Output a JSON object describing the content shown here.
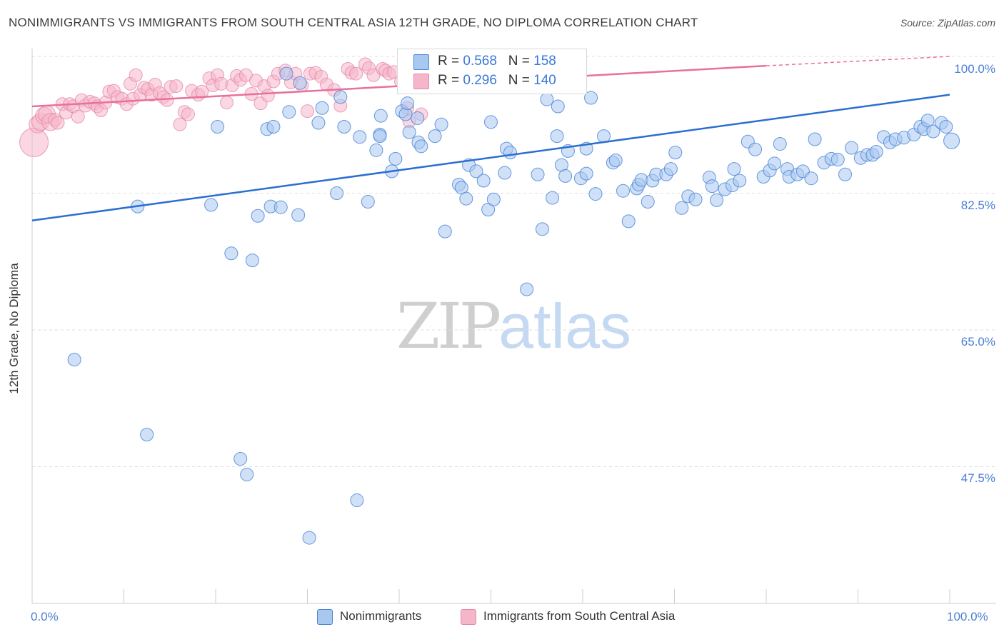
{
  "title": "NONIMMIGRANTS VS IMMIGRANTS FROM SOUTH CENTRAL ASIA 12TH GRADE, NO DIPLOMA CORRELATION CHART",
  "source": "Source: ZipAtlas.com",
  "legend_top": [
    {
      "r_label": "R = ",
      "r_value": "0.568",
      "n_label": "N = ",
      "n_value": "158"
    },
    {
      "r_label": "R = ",
      "r_value": "0.296",
      "n_label": "N = ",
      "n_value": "140"
    }
  ],
  "legend_bottom": [
    "Nonimmigrants",
    "Immigrants from South Central Asia"
  ],
  "watermark": {
    "zip": "ZIP",
    "atlas": "atlas"
  },
  "colors": {
    "blue_fill": "#a9c8f0",
    "blue_stroke": "#4b86d8",
    "blue_line": "#2a6fd0",
    "pink_fill": "#f5b6ca",
    "pink_stroke": "#e58aa8",
    "pink_line": "#e8709a",
    "tick_text": "#4a7fd4"
  },
  "chart_data": {
    "type": "scatter",
    "title": "NONIMMIGRANTS VS IMMIGRANTS FROM SOUTH CENTRAL ASIA 12TH GRADE, NO DIPLOMA CORRELATION CHART",
    "xlabel": "",
    "ylabel": "12th Grade, No Diploma",
    "xlim": [
      0,
      100
    ],
    "ylim": [
      30,
      100
    ],
    "x_tick_labels": [
      "0.0%",
      "100.0%"
    ],
    "y_ticks": [
      100,
      82.5,
      65,
      47.5
    ],
    "y_tick_labels": [
      "100.0%",
      "82.5%",
      "65.0%",
      "47.5%"
    ],
    "grid": "horizontal dashed",
    "legend_position": "top-center",
    "series": [
      {
        "name": "Nonimmigrants",
        "trendline": {
          "x": [
            0,
            100
          ],
          "y": [
            79.0,
            95.1
          ]
        },
        "points": [
          [
            4.6,
            61.2
          ],
          [
            11.5,
            80.8
          ],
          [
            12.5,
            51.6
          ],
          [
            19.5,
            81.0
          ],
          [
            20.2,
            91.0
          ],
          [
            21.7,
            74.8
          ],
          [
            22.7,
            48.5
          ],
          [
            23.4,
            46.5
          ],
          [
            24.0,
            73.9
          ],
          [
            24.6,
            79.6
          ],
          [
            25.6,
            90.7
          ],
          [
            26.0,
            80.8
          ],
          [
            26.3,
            91.0
          ],
          [
            27.1,
            80.7
          ],
          [
            27.7,
            97.8
          ],
          [
            28.0,
            92.9
          ],
          [
            29.0,
            79.7
          ],
          [
            29.2,
            96.6
          ],
          [
            30.2,
            38.4
          ],
          [
            31.2,
            91.5
          ],
          [
            31.6,
            93.4
          ],
          [
            33.2,
            82.5
          ],
          [
            33.6,
            94.8
          ],
          [
            34.0,
            91.0
          ],
          [
            35.4,
            43.2
          ],
          [
            35.7,
            89.7
          ],
          [
            36.6,
            81.4
          ],
          [
            37.5,
            88.0
          ],
          [
            37.9,
            90.0
          ],
          [
            37.9,
            89.8
          ],
          [
            38.0,
            92.4
          ],
          [
            39.2,
            85.3
          ],
          [
            39.6,
            86.9
          ],
          [
            40.3,
            93.0
          ],
          [
            40.7,
            92.6
          ],
          [
            40.9,
            94.0
          ],
          [
            41.1,
            90.3
          ],
          [
            42.0,
            92.1
          ],
          [
            42.1,
            89.0
          ],
          [
            42.4,
            88.5
          ],
          [
            43.7,
            97.7
          ],
          [
            43.9,
            89.8
          ],
          [
            44.6,
            91.3
          ],
          [
            45.0,
            77.6
          ],
          [
            46.5,
            83.6
          ],
          [
            46.8,
            83.2
          ],
          [
            47.3,
            81.8
          ],
          [
            47.6,
            86.1
          ],
          [
            48.4,
            85.3
          ],
          [
            49.2,
            84.1
          ],
          [
            49.7,
            80.4
          ],
          [
            50.0,
            91.6
          ],
          [
            50.3,
            81.7
          ],
          [
            51.5,
            85.1
          ],
          [
            51.7,
            88.2
          ],
          [
            52.1,
            87.7
          ],
          [
            53.9,
            70.2
          ],
          [
            55.1,
            84.9
          ],
          [
            55.6,
            77.9
          ],
          [
            56.1,
            94.5
          ],
          [
            56.7,
            81.9
          ],
          [
            57.2,
            89.8
          ],
          [
            57.3,
            93.6
          ],
          [
            57.7,
            86.1
          ],
          [
            58.1,
            84.7
          ],
          [
            58.4,
            87.9
          ],
          [
            59.8,
            84.4
          ],
          [
            60.4,
            85.0
          ],
          [
            60.4,
            88.2
          ],
          [
            60.9,
            94.7
          ],
          [
            61.4,
            82.4
          ],
          [
            62.3,
            89.8
          ],
          [
            63.3,
            86.4
          ],
          [
            63.6,
            86.7
          ],
          [
            64.4,
            82.8
          ],
          [
            65.0,
            78.9
          ],
          [
            65.9,
            83.1
          ],
          [
            66.1,
            83.6
          ],
          [
            66.4,
            84.2
          ],
          [
            67.1,
            81.4
          ],
          [
            67.6,
            84.1
          ],
          [
            68.0,
            84.9
          ],
          [
            69.1,
            84.9
          ],
          [
            69.6,
            85.6
          ],
          [
            70.1,
            87.7
          ],
          [
            70.8,
            80.6
          ],
          [
            71.5,
            82.1
          ],
          [
            72.3,
            81.7
          ],
          [
            73.8,
            84.5
          ],
          [
            74.1,
            83.4
          ],
          [
            74.6,
            81.6
          ],
          [
            75.5,
            83.0
          ],
          [
            76.3,
            83.5
          ],
          [
            76.5,
            85.6
          ],
          [
            77.1,
            84.1
          ],
          [
            78.0,
            89.1
          ],
          [
            78.8,
            88.1
          ],
          [
            79.7,
            84.6
          ],
          [
            80.4,
            85.4
          ],
          [
            80.9,
            86.3
          ],
          [
            81.5,
            88.8
          ],
          [
            82.3,
            85.6
          ],
          [
            82.5,
            84.6
          ],
          [
            83.4,
            84.9
          ],
          [
            84.0,
            85.3
          ],
          [
            84.9,
            84.4
          ],
          [
            85.3,
            89.4
          ],
          [
            86.3,
            86.4
          ],
          [
            87.1,
            86.9
          ],
          [
            87.8,
            86.8
          ],
          [
            88.6,
            84.9
          ],
          [
            89.3,
            88.3
          ],
          [
            90.3,
            87.0
          ],
          [
            91.0,
            87.4
          ],
          [
            91.6,
            87.4
          ],
          [
            92.0,
            87.8
          ],
          [
            92.8,
            89.7
          ],
          [
            93.5,
            89.0
          ],
          [
            94.1,
            89.4
          ],
          [
            95.0,
            89.6
          ],
          [
            96.1,
            90.0
          ],
          [
            96.8,
            91.0
          ],
          [
            97.2,
            90.7
          ],
          [
            97.6,
            91.8
          ],
          [
            98.2,
            90.4
          ],
          [
            99.1,
            91.5
          ],
          [
            99.6,
            91.0
          ],
          [
            100.2,
            89.2
          ]
        ]
      },
      {
        "name": "Immigrants from South Central Asia",
        "trendline": {
          "x": [
            0,
            80,
            100
          ],
          "y": [
            93.6,
            98.8,
            100.0
          ]
        },
        "points": [
          [
            0.2,
            89.0
          ],
          [
            0.6,
            91.3
          ],
          [
            0.9,
            91.6
          ],
          [
            1.3,
            92.4
          ],
          [
            1.6,
            92.6
          ],
          [
            2.0,
            91.6
          ],
          [
            2.5,
            91.9
          ],
          [
            2.8,
            91.5
          ],
          [
            3.3,
            93.9
          ],
          [
            3.7,
            92.8
          ],
          [
            4.1,
            93.9
          ],
          [
            4.5,
            93.6
          ],
          [
            5.0,
            92.3
          ],
          [
            5.4,
            94.4
          ],
          [
            5.8,
            93.7
          ],
          [
            6.3,
            94.2
          ],
          [
            6.8,
            94.0
          ],
          [
            7.1,
            93.6
          ],
          [
            7.5,
            93.1
          ],
          [
            8.0,
            94.1
          ],
          [
            8.4,
            95.5
          ],
          [
            8.9,
            95.6
          ],
          [
            9.3,
            94.8
          ],
          [
            9.8,
            94.6
          ],
          [
            10.3,
            93.9
          ],
          [
            10.7,
            96.5
          ],
          [
            11.0,
            94.6
          ],
          [
            11.3,
            97.6
          ],
          [
            11.8,
            95.1
          ],
          [
            12.2,
            96.0
          ],
          [
            12.6,
            95.8
          ],
          [
            13.0,
            95.1
          ],
          [
            13.4,
            96.4
          ],
          [
            13.9,
            95.3
          ],
          [
            14.3,
            94.8
          ],
          [
            14.7,
            94.4
          ],
          [
            15.1,
            96.1
          ],
          [
            15.7,
            96.2
          ],
          [
            16.1,
            91.3
          ],
          [
            16.6,
            92.9
          ],
          [
            17.0,
            92.6
          ],
          [
            17.4,
            95.6
          ],
          [
            18.1,
            95.1
          ],
          [
            18.5,
            95.5
          ],
          [
            19.3,
            97.2
          ],
          [
            19.7,
            96.3
          ],
          [
            20.2,
            97.6
          ],
          [
            20.6,
            96.5
          ],
          [
            21.2,
            94.1
          ],
          [
            21.8,
            96.3
          ],
          [
            22.3,
            97.5
          ],
          [
            22.7,
            97.0
          ],
          [
            23.3,
            97.6
          ],
          [
            23.9,
            95.2
          ],
          [
            24.4,
            96.9
          ],
          [
            24.9,
            94.0
          ],
          [
            25.3,
            96.2
          ],
          [
            25.7,
            95.0
          ],
          [
            26.3,
            96.8
          ],
          [
            26.8,
            97.8
          ],
          [
            27.6,
            98.2
          ],
          [
            28.2,
            96.7
          ],
          [
            28.7,
            97.8
          ],
          [
            29.4,
            96.3
          ],
          [
            30.0,
            93.0
          ],
          [
            30.3,
            97.8
          ],
          [
            30.9,
            97.9
          ],
          [
            31.5,
            97.4
          ],
          [
            32.1,
            96.4
          ],
          [
            32.9,
            95.7
          ],
          [
            33.6,
            93.7
          ],
          [
            34.4,
            98.4
          ],
          [
            34.8,
            97.9
          ],
          [
            35.3,
            97.8
          ],
          [
            36.3,
            99.0
          ],
          [
            36.7,
            98.5
          ],
          [
            37.2,
            97.6
          ],
          [
            38.2,
            98.4
          ],
          [
            38.5,
            98.2
          ],
          [
            38.9,
            97.8
          ],
          [
            39.4,
            98.0
          ],
          [
            40.2,
            96.8
          ],
          [
            40.9,
            93.4
          ],
          [
            41.1,
            91.7
          ],
          [
            42.4,
            92.6
          ]
        ]
      }
    ]
  }
}
